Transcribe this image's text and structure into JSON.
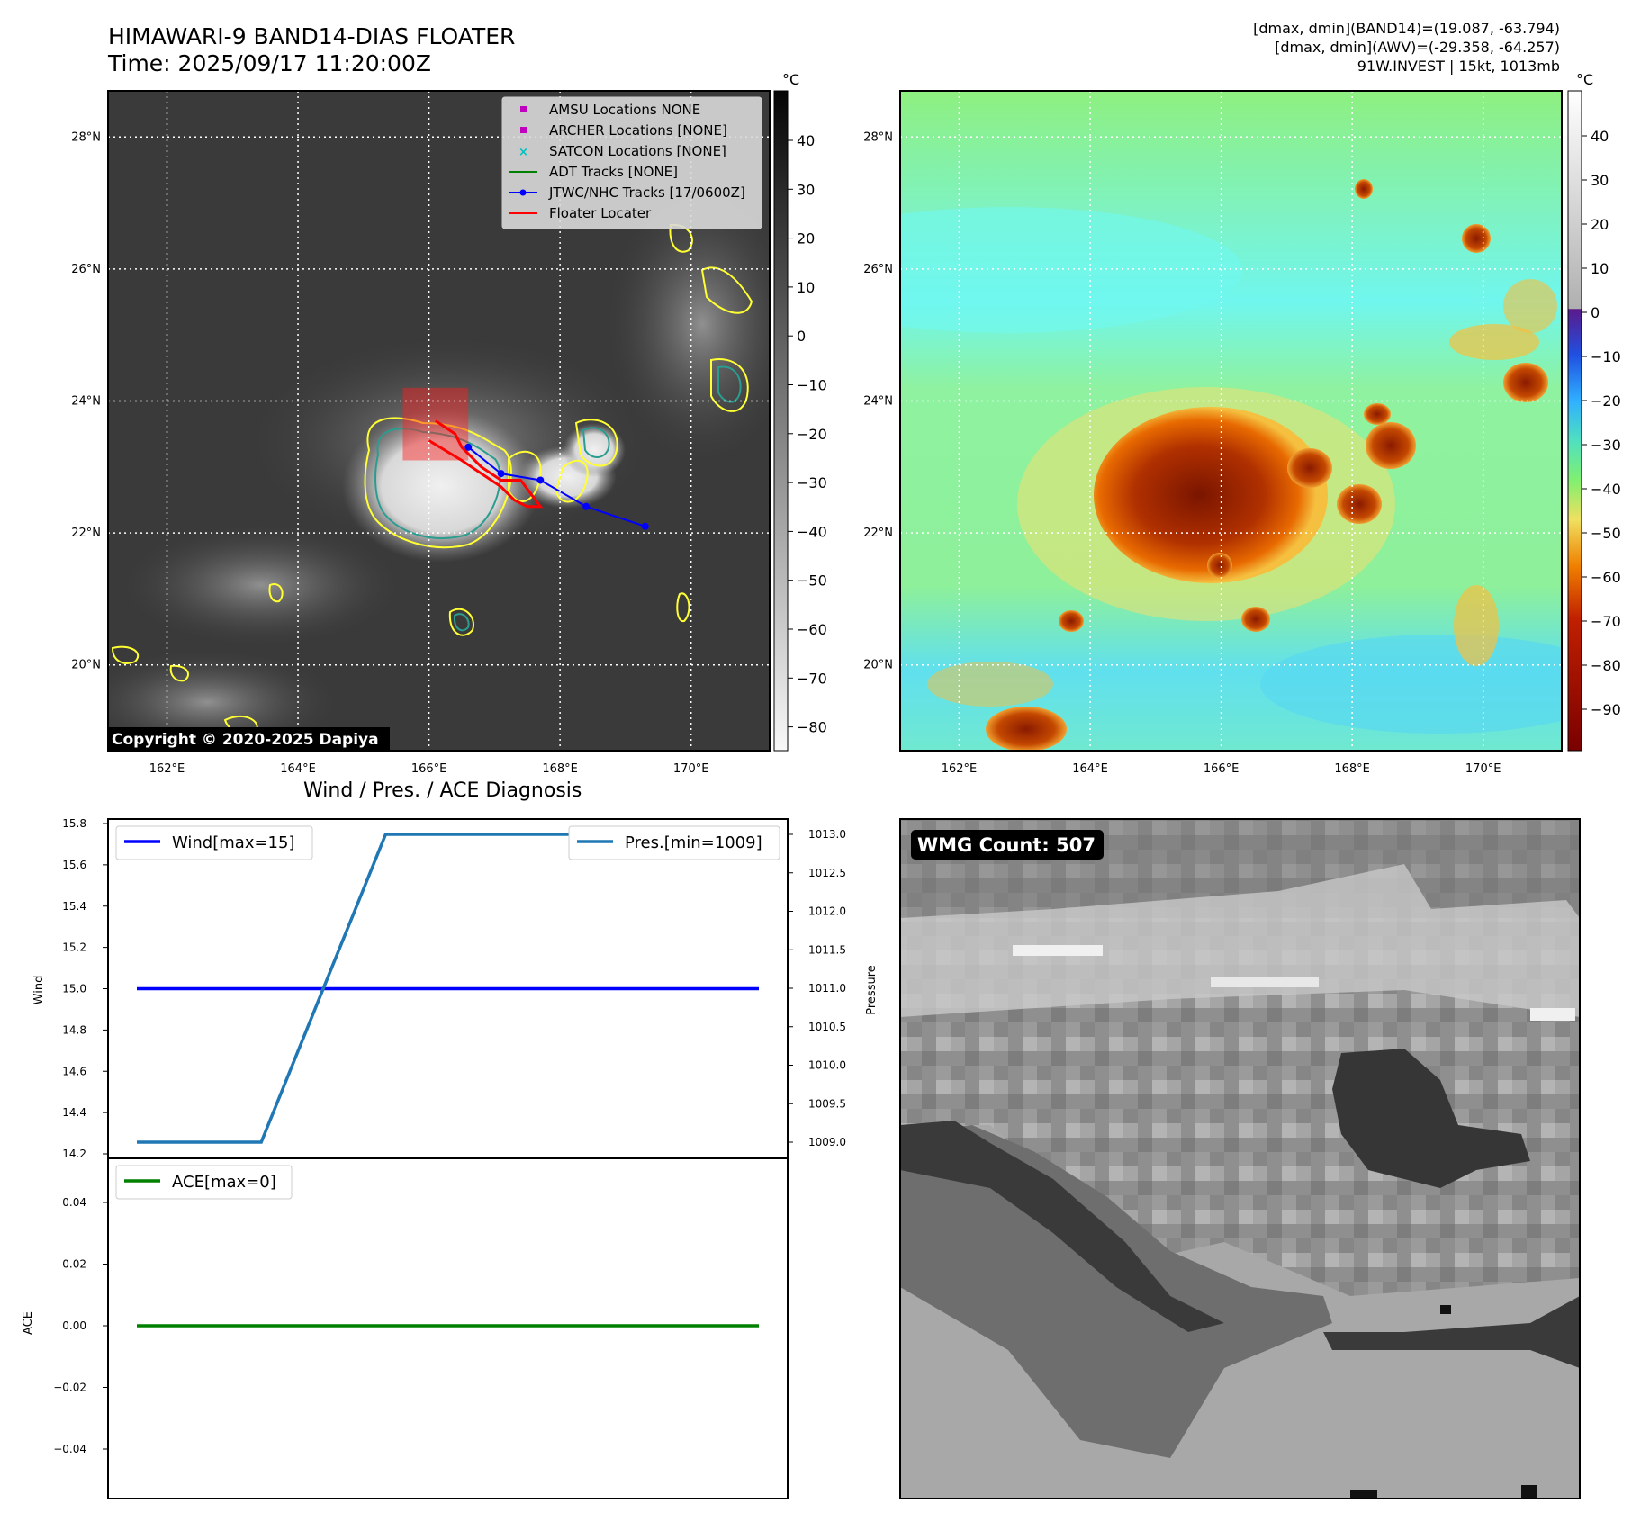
{
  "header": {
    "title_line1": "HIMAWARI-9 BAND14-DIAS FLOATER",
    "title_line2": "Time: 2025/09/17 11:20:00Z",
    "info_line1": "[dmax, dmin](BAND14)=(19.087, -63.794)",
    "info_line2": "[dmax, dmin](AWV)=(-29.358, -64.257)",
    "info_line3": "91W.INVEST | 15kt, 1013mb"
  },
  "map_panels": {
    "lon_ticks": [
      "162°E",
      "164°E",
      "166°E",
      "168°E",
      "170°E"
    ],
    "lat_ticks": [
      "28°N",
      "26°N",
      "24°N",
      "22°N",
      "20°N"
    ],
    "lon_range": [
      161.1,
      171.2
    ],
    "lat_range": [
      18.7,
      28.7
    ],
    "copyright": "Copyright © 2020-2025 Dapiya",
    "colorbar_unit": "°C",
    "ir_colorbar_ticks": [
      "40",
      "30",
      "20",
      "10",
      "0",
      "−10",
      "−20",
      "−30",
      "−40",
      "−50",
      "−60",
      "−70",
      "−80"
    ],
    "wv_colorbar_ticks": [
      "40",
      "30",
      "20",
      "10",
      "0",
      "−10",
      "−20",
      "−30",
      "−40",
      "−50",
      "−60",
      "−70",
      "−80",
      "−90"
    ]
  },
  "legend": {
    "amsu": "AMSU Locations NONE",
    "archer": "ARCHER Locations [NONE]",
    "satcon": "SATCON Locations [NONE]",
    "adt": "ADT Tracks [NONE]",
    "jtwc": "JTWC/NHC Tracks [17/0600Z]",
    "floater": "Floater Locater"
  },
  "tracks": {
    "jtwc_points": [
      [
        166.6,
        23.3
      ],
      [
        167.1,
        22.9
      ],
      [
        167.7,
        22.8
      ],
      [
        168.4,
        22.4
      ],
      [
        169.3,
        22.1
      ]
    ],
    "floater_points": [
      [
        166.1,
        23.7
      ],
      [
        166.4,
        23.5
      ],
      [
        166.5,
        23.3
      ],
      [
        166.8,
        23.0
      ],
      [
        167.1,
        22.8
      ],
      [
        167.4,
        22.8
      ],
      [
        167.7,
        22.4
      ],
      [
        167.5,
        22.4
      ],
      [
        167.3,
        22.5
      ],
      [
        167.1,
        22.7
      ],
      [
        166.5,
        23.1
      ],
      [
        166.0,
        23.4
      ]
    ],
    "floater_box": {
      "lon": [
        165.6,
        166.6
      ],
      "lat": [
        23.1,
        24.2
      ]
    }
  },
  "colors": {
    "jtwc": "#0000ff",
    "floater": "#ff0000",
    "adt": "#008000",
    "amsu_archer": "#bf00bf",
    "satcon": "#00bfbf",
    "wind": "#0000ff",
    "pressure": "#1f77b4",
    "ace": "#008000",
    "contour_warm": "#ffff33",
    "contour_cold": "#2a9d8f"
  },
  "diagnosis": {
    "title": "Wind / Pres. / ACE Diagnosis",
    "wind_ylabel": "Wind",
    "pres_ylabel": "Pressure",
    "ace_ylabel": "ACE",
    "wind_legend": "Wind[max=15]",
    "pres_legend": "Pres.[min=1009]",
    "ace_legend": "ACE[max=0]",
    "wind_ticks": [
      "15.8",
      "15.6",
      "15.4",
      "15.2",
      "15.0",
      "14.8",
      "14.6",
      "14.4",
      "14.2"
    ],
    "pres_ticks": [
      "1013.0",
      "1012.5",
      "1012.0",
      "1011.5",
      "1011.0",
      "1010.5",
      "1010.0",
      "1009.5",
      "1009.0"
    ],
    "ace_ticks": [
      "0.04",
      "0.02",
      "0.00",
      "−0.02",
      "−0.04"
    ]
  },
  "wmg": {
    "label": "WMG Count: 507"
  },
  "chart_data": [
    {
      "type": "line",
      "title": "Wind / Pres. / ACE Diagnosis",
      "x": [
        0,
        1,
        2,
        3,
        4,
        5
      ],
      "ylabel": "Wind",
      "ylim": [
        14.2,
        15.8
      ],
      "series": [
        {
          "name": "Wind[max=15]",
          "values": [
            15,
            15,
            15,
            15,
            15,
            15
          ]
        }
      ]
    },
    {
      "type": "line",
      "ylabel": "Pressure",
      "ylim": [
        1008.9,
        1013.1
      ],
      "series": [
        {
          "name": "Pres.[min=1009]",
          "values": [
            1009,
            1009,
            1013,
            1013,
            1013,
            1013
          ]
        }
      ]
    },
    {
      "type": "line",
      "ylabel": "ACE",
      "ylim": [
        -0.055,
        0.055
      ],
      "series": [
        {
          "name": "ACE[max=0]",
          "values": [
            0,
            0,
            0,
            0,
            0,
            0
          ]
        }
      ]
    }
  ]
}
